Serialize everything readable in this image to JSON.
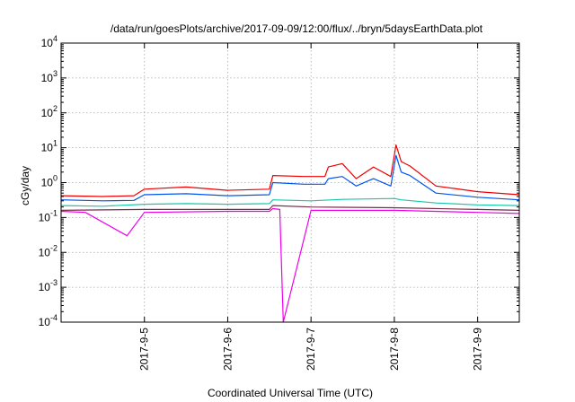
{
  "chart_data": {
    "type": "line",
    "title": "/data/run/goesPlots/archive/2017-09-09/12:00/flux/../bryn/5daysEarthData.plot",
    "xlabel": "Coordinated Universal Time (UTC)",
    "ylabel": "cGy/day",
    "y_scale": "log",
    "ylim": [
      0.0001,
      10000
    ],
    "xlim": [
      "2017-09-04T00:00",
      "2017-09-09T12:00"
    ],
    "y_ticks": [
      {
        "value": 0.0001,
        "base": "10",
        "exp": "-4"
      },
      {
        "value": 0.001,
        "base": "10",
        "exp": "-3"
      },
      {
        "value": 0.01,
        "base": "10",
        "exp": "-2"
      },
      {
        "value": 0.1,
        "base": "10",
        "exp": "-1"
      },
      {
        "value": 1,
        "base": "10",
        "exp": "0"
      },
      {
        "value": 10,
        "base": "10",
        "exp": "1"
      },
      {
        "value": 100,
        "base": "10",
        "exp": "2"
      },
      {
        "value": 1000,
        "base": "10",
        "exp": "3"
      },
      {
        "value": 10000,
        "base": "10",
        "exp": "4"
      }
    ],
    "x_ticks": [
      {
        "value": "2017-09-05T00:00",
        "label": "2017-9-5"
      },
      {
        "value": "2017-09-06T00:00",
        "label": "2017-9-6"
      },
      {
        "value": "2017-09-07T00:00",
        "label": "2017-9-7"
      },
      {
        "value": "2017-09-08T00:00",
        "label": "2017-9-8"
      },
      {
        "value": "2017-09-09T00:00",
        "label": "2017-9-9"
      }
    ],
    "grid": true,
    "legend": "none",
    "series": [
      {
        "color": "#ee0000",
        "x": [
          "2017-09-04T00:00",
          "2017-09-04T12:00",
          "2017-09-04T21:00",
          "2017-09-05T00:00",
          "2017-09-05T12:00",
          "2017-09-06T00:00",
          "2017-09-06T12:00",
          "2017-09-06T13:00",
          "2017-09-06T22:00",
          "2017-09-07T04:00",
          "2017-09-07T05:00",
          "2017-09-07T09:00",
          "2017-09-07T13:00",
          "2017-09-07T18:00",
          "2017-09-07T23:00",
          "2017-09-08T00:30",
          "2017-09-08T02:00",
          "2017-09-08T04:30",
          "2017-09-08T12:00",
          "2017-09-09T00:00",
          "2017-09-09T12:00"
        ],
        "y": [
          0.42,
          0.4,
          0.42,
          0.65,
          0.75,
          0.6,
          0.65,
          1.6,
          1.5,
          1.5,
          2.8,
          3.5,
          1.3,
          2.8,
          1.5,
          12,
          4,
          3,
          0.8,
          0.55,
          0.45
        ]
      },
      {
        "color": "#0055ee",
        "x": [
          "2017-09-04T00:00",
          "2017-09-04T12:00",
          "2017-09-04T21:00",
          "2017-09-05T00:00",
          "2017-09-05T12:00",
          "2017-09-06T00:00",
          "2017-09-06T12:00",
          "2017-09-06T13:00",
          "2017-09-06T22:00",
          "2017-09-07T04:00",
          "2017-09-07T05:00",
          "2017-09-07T09:00",
          "2017-09-07T13:00",
          "2017-09-07T18:00",
          "2017-09-07T23:00",
          "2017-09-08T00:30",
          "2017-09-08T02:00",
          "2017-09-08T04:30",
          "2017-09-08T12:00",
          "2017-09-09T00:00",
          "2017-09-09T12:00"
        ],
        "y": [
          0.32,
          0.3,
          0.31,
          0.45,
          0.48,
          0.42,
          0.45,
          1.0,
          0.9,
          0.9,
          1.3,
          1.5,
          0.8,
          1.3,
          0.8,
          6,
          2,
          1.6,
          0.5,
          0.38,
          0.32
        ]
      },
      {
        "color": "#18c8a8",
        "x": [
          "2017-09-04T00:00",
          "2017-09-04T12:00",
          "2017-09-05T00:00",
          "2017-09-05T12:00",
          "2017-09-06T00:00",
          "2017-09-06T12:00",
          "2017-09-06T13:00",
          "2017-09-07T00:00",
          "2017-09-07T09:00",
          "2017-09-08T00:00",
          "2017-09-08T02:00",
          "2017-09-08T12:00",
          "2017-09-09T00:00",
          "2017-09-09T12:00"
        ],
        "y": [
          0.22,
          0.21,
          0.24,
          0.25,
          0.24,
          0.25,
          0.32,
          0.3,
          0.33,
          0.35,
          0.32,
          0.26,
          0.23,
          0.22
        ]
      },
      {
        "color": "#7a2a4a",
        "x": [
          "2017-09-04T00:00",
          "2017-09-05T00:00",
          "2017-09-06T00:00",
          "2017-09-06T12:00",
          "2017-09-06T13:00",
          "2017-09-07T00:00",
          "2017-09-08T00:00",
          "2017-09-09T00:00",
          "2017-09-09T12:00"
        ],
        "y": [
          0.16,
          0.17,
          0.17,
          0.17,
          0.22,
          0.2,
          0.19,
          0.17,
          0.16
        ]
      },
      {
        "color": "#ee00ee",
        "x": [
          "2017-09-04T00:00",
          "2017-09-04T07:00",
          "2017-09-04T19:00",
          "2017-09-05T00:00",
          "2017-09-06T00:00",
          "2017-09-06T12:00",
          "2017-09-06T13:00",
          "2017-09-06T15:00",
          "2017-09-06T16:00",
          "2017-09-07T00:00",
          "2017-09-08T00:00",
          "2017-09-09T00:00",
          "2017-09-09T12:00"
        ],
        "y": [
          0.15,
          0.14,
          0.03,
          0.14,
          0.15,
          0.15,
          0.18,
          0.17,
          0.0001,
          0.16,
          0.16,
          0.14,
          0.13
        ]
      }
    ]
  }
}
